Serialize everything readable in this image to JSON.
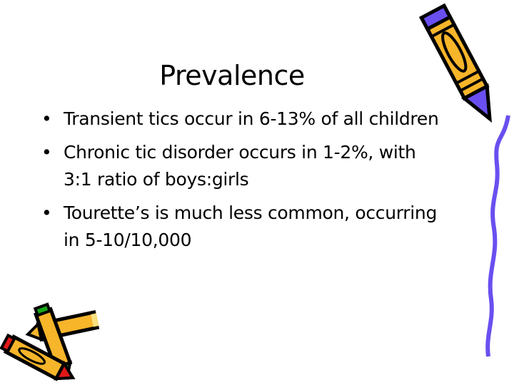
{
  "slide": {
    "title": "Prevalence",
    "bullet_glyph": "•",
    "bullets": [
      {
        "text": "Transient tics occur in 6-13% of all children"
      },
      {
        "text": "Chronic tic disorder occurs in 1-2%, with 3:1 ratio of boys:girls"
      },
      {
        "text": "Tourette’s is much less common, occurring in 5-10/10,000"
      }
    ]
  },
  "decorations": {
    "top_right": "pencil-with-squiggle-clipart",
    "bottom_left": "crayons-clipart",
    "colors": {
      "pencil_yellow": "#f7b52a",
      "pencil_purple": "#6a4ff0",
      "crayon_red": "#e01818",
      "crayon_green": "#18a818"
    }
  }
}
